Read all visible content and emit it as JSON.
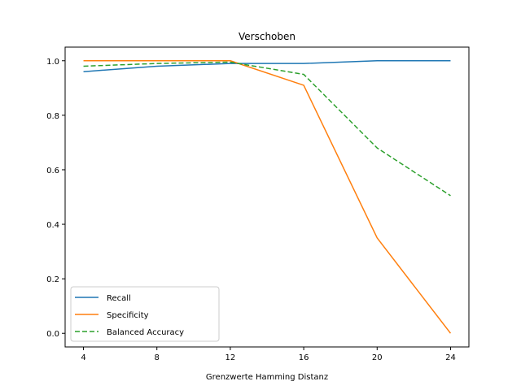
{
  "chart_data": {
    "type": "line",
    "title": "Verschoben",
    "xlabel": "Grenzwerte Hamming Distanz",
    "ylabel": "",
    "x": [
      4,
      8,
      12,
      16,
      20,
      24
    ],
    "xticks": [
      4,
      8,
      12,
      16,
      20,
      24
    ],
    "yticks": [
      0.0,
      0.2,
      0.4,
      0.6,
      0.8,
      1.0
    ],
    "ytick_labels": [
      "0.0",
      "0.2",
      "0.4",
      "0.6",
      "0.8",
      "1.0"
    ],
    "xlim": [
      3,
      25
    ],
    "ylim": [
      -0.05,
      1.05
    ],
    "grid": false,
    "legend_position": "lower-left",
    "series": [
      {
        "name": "Recall",
        "values": [
          0.96,
          0.98,
          0.99,
          0.99,
          1.0,
          1.0
        ],
        "color": "#1f77b4",
        "style": "solid"
      },
      {
        "name": "Specificity",
        "values": [
          1.0,
          1.0,
          1.0,
          0.91,
          0.35,
          0.0
        ],
        "color": "#ff7f0e",
        "style": "solid"
      },
      {
        "name": "Balanced Accuracy",
        "values": [
          0.98,
          0.99,
          0.995,
          0.95,
          0.68,
          0.505
        ],
        "color": "#2ca02c",
        "style": "dashed"
      }
    ]
  }
}
